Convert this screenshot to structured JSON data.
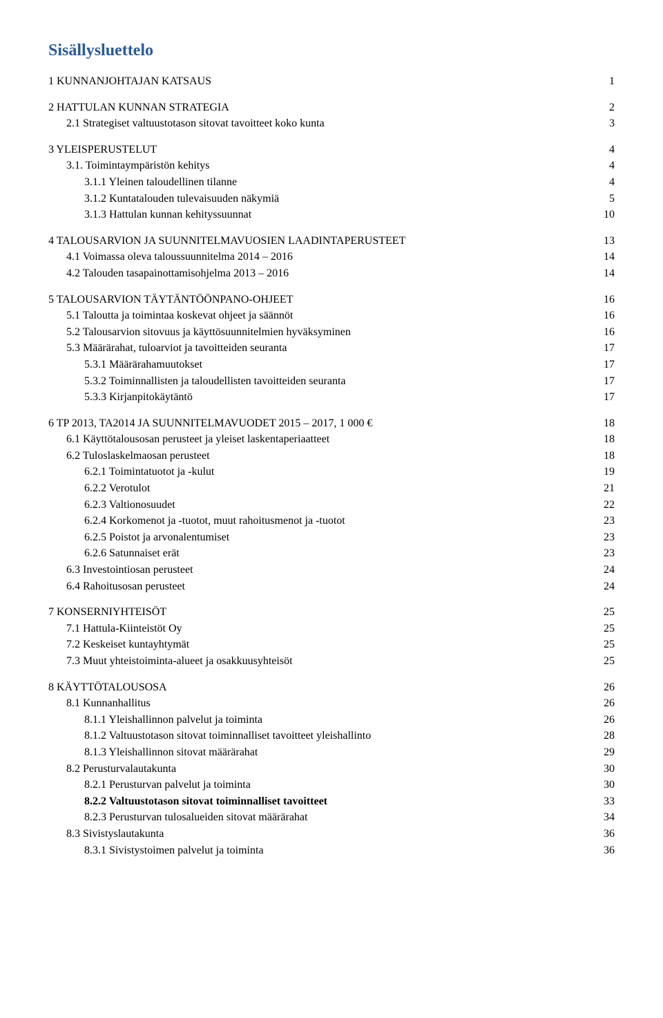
{
  "title": "Sisällysluettelo",
  "title_color": "#2a5a9a",
  "text_color": "#000000",
  "font_family": "Times New Roman",
  "groups": [
    {
      "items": [
        {
          "label": "1 KUNNANJOHTAJAN KATSAUS",
          "page": "1",
          "indent": 0,
          "bold": false
        }
      ]
    },
    {
      "items": [
        {
          "label": "2 HATTULAN KUNNAN STRATEGIA",
          "page": "2",
          "indent": 0,
          "bold": false
        },
        {
          "label": "2.1 Strategiset valtuustotason sitovat tavoitteet koko kunta",
          "page": "3",
          "indent": 1,
          "bold": false
        }
      ]
    },
    {
      "items": [
        {
          "label": "3 YLEISPERUSTELUT",
          "page": "4",
          "indent": 0,
          "bold": false
        },
        {
          "label": "3.1. Toimintaympäristön kehitys",
          "page": "4",
          "indent": 1,
          "bold": false
        },
        {
          "label": "3.1.1 Yleinen taloudellinen tilanne",
          "page": "4",
          "indent": 2,
          "bold": false
        },
        {
          "label": "3.1.2 Kuntatalouden tulevaisuuden näkymiä",
          "page": "5",
          "indent": 2,
          "bold": false
        },
        {
          "label": "3.1.3 Hattulan kunnan kehityssuunnat",
          "page": "10",
          "indent": 2,
          "bold": false
        }
      ]
    },
    {
      "items": [
        {
          "label": "4 TALOUSARVION JA SUUNNITELMAVUOSIEN LAADINTAPERUSTEET",
          "page": "13",
          "indent": 0,
          "bold": false
        },
        {
          "label": "4.1 Voimassa oleva taloussuunnitelma 2014 – 2016",
          "page": "14",
          "indent": 1,
          "bold": false
        },
        {
          "label": "4.2 Talouden tasapainottamisohjelma 2013 – 2016",
          "page": "14",
          "indent": 1,
          "bold": false
        }
      ]
    },
    {
      "items": [
        {
          "label": "5 TALOUSARVION TÄYTÄNTÖÖNPANO-OHJEET",
          "page": "16",
          "indent": 0,
          "bold": false
        },
        {
          "label": "5.1 Taloutta ja toimintaa koskevat ohjeet ja säännöt",
          "page": "16",
          "indent": 1,
          "bold": false
        },
        {
          "label": "5.2 Talousarvion sitovuus ja käyttösuunnitelmien hyväksyminen",
          "page": "16",
          "indent": 1,
          "bold": false
        },
        {
          "label": "5.3 Määrärahat, tuloarviot ja tavoitteiden seuranta",
          "page": "17",
          "indent": 1,
          "bold": false
        },
        {
          "label": "5.3.1 Määrärahamuutokset",
          "page": "17",
          "indent": 2,
          "bold": false
        },
        {
          "label": "5.3.2 Toiminnallisten ja taloudellisten tavoitteiden seuranta",
          "page": "17",
          "indent": 2,
          "bold": false
        },
        {
          "label": "5.3.3 Kirjanpitokäytäntö",
          "page": "17",
          "indent": 2,
          "bold": false
        }
      ]
    },
    {
      "items": [
        {
          "label": "6 TP 2013, TA2014 JA SUUNNITELMAVUODET 2015 – 2017, 1 000 €",
          "page": "18",
          "indent": 0,
          "bold": false
        },
        {
          "label": "6.1 Käyttötalousosan perusteet ja yleiset laskentaperiaatteet",
          "page": "18",
          "indent": 1,
          "bold": false
        },
        {
          "label": "6.2 Tuloslaskelmaosan perusteet",
          "page": "18",
          "indent": 1,
          "bold": false
        },
        {
          "label": "6.2.1 Toimintatuotot ja -kulut",
          "page": "19",
          "indent": 2,
          "bold": false
        },
        {
          "label": "6.2.2 Verotulot",
          "page": "21",
          "indent": 2,
          "bold": false
        },
        {
          "label": "6.2.3 Valtionosuudet",
          "page": "22",
          "indent": 2,
          "bold": false
        },
        {
          "label": "6.2.4 Korkomenot ja -tuotot, muut rahoitusmenot ja -tuotot",
          "page": "23",
          "indent": 2,
          "bold": false
        },
        {
          "label": "6.2.5 Poistot ja arvonalentumiset",
          "page": "23",
          "indent": 2,
          "bold": false
        },
        {
          "label": "6.2.6 Satunnaiset erät",
          "page": "23",
          "indent": 2,
          "bold": false
        },
        {
          "label": "6.3 Investointiosan perusteet",
          "page": "24",
          "indent": 1,
          "bold": false
        },
        {
          "label": "6.4 Rahoitusosan perusteet",
          "page": "24",
          "indent": 1,
          "bold": false
        }
      ]
    },
    {
      "items": [
        {
          "label": "7 KONSERNIYHTEISÖT",
          "page": "25",
          "indent": 0,
          "bold": false
        },
        {
          "label": "7.1 Hattula-Kiinteistöt Oy",
          "page": "25",
          "indent": 1,
          "bold": false
        },
        {
          "label": "7.2 Keskeiset kuntayhtymät",
          "page": "25",
          "indent": 1,
          "bold": false
        },
        {
          "label": "7.3 Muut yhteistoiminta-alueet ja osakkuusyhteisöt",
          "page": "25",
          "indent": 1,
          "bold": false
        }
      ]
    },
    {
      "items": [
        {
          "label": "8 KÄYTTÖTALOUSOSA",
          "page": "26",
          "indent": 0,
          "bold": false
        },
        {
          "label": "8.1 Kunnanhallitus",
          "page": "26",
          "indent": 1,
          "bold": false
        },
        {
          "label": "8.1.1 Yleishallinnon palvelut ja toiminta",
          "page": "26",
          "indent": 2,
          "bold": false
        },
        {
          "label": "8.1.2 Valtuustotason sitovat toiminnalliset tavoitteet yleishallinto",
          "page": "28",
          "indent": 2,
          "bold": false
        },
        {
          "label": "8.1.3 Yleishallinnon sitovat määrärahat",
          "page": "29",
          "indent": 2,
          "bold": false
        },
        {
          "label": "8.2 Perusturvalautakunta",
          "page": "30",
          "indent": 1,
          "bold": false
        },
        {
          "label": "8.2.1 Perusturvan palvelut ja toiminta",
          "page": "30",
          "indent": 2,
          "bold": false
        },
        {
          "label": "8.2.2 Valtuustotason sitovat toiminnalliset tavoitteet",
          "page": "33",
          "indent": 2,
          "bold": true
        },
        {
          "label": "8.2.3 Perusturvan tulosalueiden sitovat määrärahat",
          "page": "34",
          "indent": 2,
          "bold": false
        },
        {
          "label": "8.3 Sivistyslautakunta",
          "page": "36",
          "indent": 1,
          "bold": false
        },
        {
          "label": "8.3.1 Sivistystoimen palvelut ja toiminta",
          "page": "36",
          "indent": 2,
          "bold": false
        }
      ]
    }
  ]
}
